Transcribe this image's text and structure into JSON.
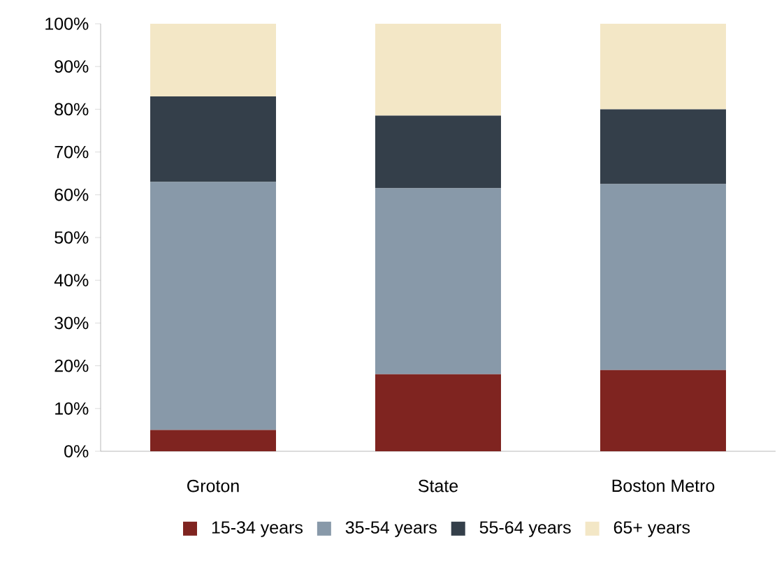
{
  "chart_data": {
    "type": "bar",
    "stacked": true,
    "categories": [
      "Groton",
      "State",
      "Boston Metro"
    ],
    "series": [
      {
        "name": "15-34 years",
        "color": "#7f2420",
        "values": [
          5,
          18,
          19
        ]
      },
      {
        "name": "35-54 years",
        "color": "#8899a9",
        "values": [
          58,
          43.5,
          43.5
        ]
      },
      {
        "name": "55-64 years",
        "color": "#343f4a",
        "values": [
          20,
          17,
          17.5
        ]
      },
      {
        "name": "65+ years",
        "color": "#f3e7c6",
        "values": [
          17,
          21.5,
          20
        ]
      }
    ],
    "ylim": [
      0,
      100
    ],
    "yticks": [
      {
        "value": 0,
        "label": "0%"
      },
      {
        "value": 10,
        "label": "10%"
      },
      {
        "value": 20,
        "label": "20%"
      },
      {
        "value": 30,
        "label": "30%"
      },
      {
        "value": 40,
        "label": "40%"
      },
      {
        "value": 50,
        "label": "50%"
      },
      {
        "value": 60,
        "label": "60%"
      },
      {
        "value": 70,
        "label": "70%"
      },
      {
        "value": 80,
        "label": "80%"
      },
      {
        "value": 90,
        "label": "90%"
      },
      {
        "value": 100,
        "label": "100%"
      }
    ],
    "grid": false,
    "legend": "bottom"
  }
}
